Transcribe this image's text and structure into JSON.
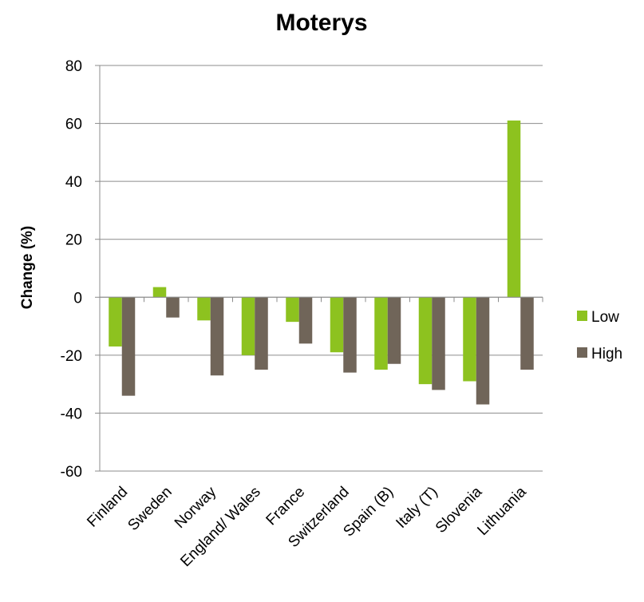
{
  "chart_data": {
    "type": "bar",
    "title": "Moterys",
    "xlabel": "",
    "ylabel": "Change (%)",
    "ylim": [
      -60,
      80
    ],
    "yticks": [
      -60,
      -40,
      -20,
      0,
      20,
      40,
      60,
      80
    ],
    "grid": true,
    "legend_position": "right",
    "categories": [
      "Finland",
      "Sweden",
      "Norway",
      "England/ Wales",
      "France",
      "Switzerland",
      "Spain (B)",
      "Italy (T)",
      "Slovenia",
      "Lithuania"
    ],
    "series": [
      {
        "name": "Low",
        "color": "#8dc21f",
        "values": [
          -17,
          3.5,
          -8,
          -20,
          -8.5,
          -19,
          -25,
          -30,
          -29,
          61
        ]
      },
      {
        "name": "High",
        "color": "#706559",
        "values": [
          -34,
          -7,
          -27,
          -25,
          -16,
          -26,
          -23,
          -32,
          -37,
          -25
        ]
      }
    ]
  }
}
